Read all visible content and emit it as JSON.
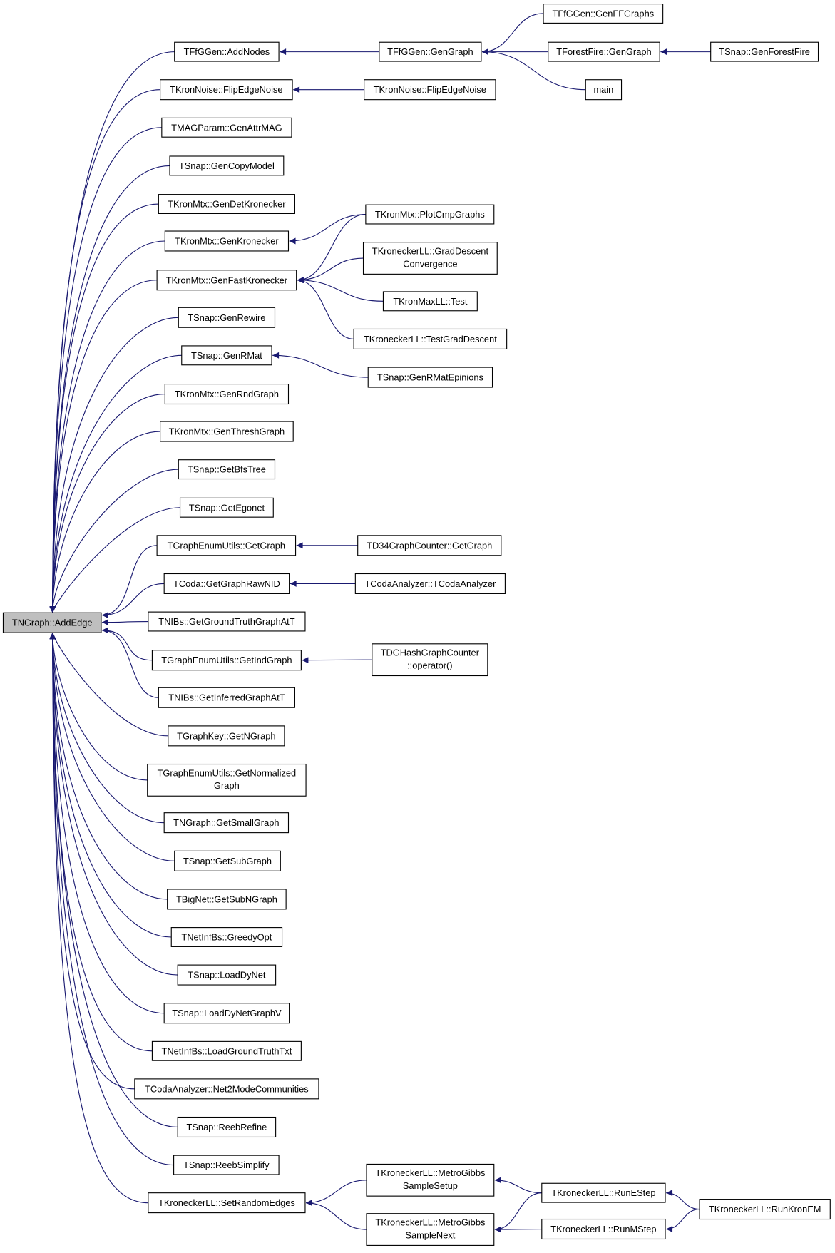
{
  "nodes": [
    {
      "label": "TNGraph::AddEdge"
    },
    {
      "label": "TFfGGen::AddNodes"
    },
    {
      "label": "TKronNoise::FlipEdgeNoise"
    },
    {
      "label": "TMAGParam::GenAttrMAG"
    },
    {
      "label": "TSnap::GenCopyModel"
    },
    {
      "label": "TKronMtx::GenDetKronecker"
    },
    {
      "label": "TKronMtx::GenKronecker"
    },
    {
      "label": "TKronMtx::GenFastKronecker"
    },
    {
      "label": "TSnap::GenRewire"
    },
    {
      "label": "TSnap::GenRMat"
    },
    {
      "label": "TKronMtx::GenRndGraph"
    },
    {
      "label": "TKronMtx::GenThreshGraph"
    },
    {
      "label": "TSnap::GetBfsTree"
    },
    {
      "label": "TSnap::GetEgonet"
    },
    {
      "label": "TGraphEnumUtils::GetGraph"
    },
    {
      "label": "TCoda::GetGraphRawNID"
    },
    {
      "label": "TNIBs::GetGroundTruthGraphAtT"
    },
    {
      "label": "TGraphEnumUtils::GetIndGraph"
    },
    {
      "label": "TNIBs::GetInferredGraphAtT"
    },
    {
      "label": "TGraphKey::GetNGraph"
    },
    {
      "label": [
        "TGraphEnumUtils::GetNormalized",
        "Graph"
      ]
    },
    {
      "label": "TNGraph::GetSmallGraph"
    },
    {
      "label": "TSnap::GetSubGraph"
    },
    {
      "label": "TBigNet::GetSubNGraph"
    },
    {
      "label": "TNetInfBs::GreedyOpt"
    },
    {
      "label": "TSnap::LoadDyNet"
    },
    {
      "label": "TSnap::LoadDyNetGraphV"
    },
    {
      "label": "TNetInfBs::LoadGroundTruthTxt"
    },
    {
      "label": "TCodaAnalyzer::Net2ModeCommunities"
    },
    {
      "label": "TSnap::ReebRefine"
    },
    {
      "label": "TSnap::ReebSimplify"
    },
    {
      "label": "TKroneckerLL::SetRandomEdges"
    },
    {
      "label": "TFfGGen::GenGraph"
    },
    {
      "label": "TKronNoise::FlipEdgeNoise"
    },
    {
      "label": "TKronMtx::PlotCmpGraphs"
    },
    {
      "label": [
        "TKroneckerLL::GradDescent",
        "Convergence"
      ]
    },
    {
      "label": "TKronMaxLL::Test"
    },
    {
      "label": "TKroneckerLL::TestGradDescent"
    },
    {
      "label": "TSnap::GenRMatEpinions"
    },
    {
      "label": "TD34GraphCounter::GetGraph"
    },
    {
      "label": "TCodaAnalyzer::TCodaAnalyzer"
    },
    {
      "label": [
        "TDGHashGraphCounter",
        "::operator()"
      ]
    },
    {
      "label": [
        "TKroneckerLL::MetroGibbs",
        "SampleSetup"
      ]
    },
    {
      "label": [
        "TKroneckerLL::MetroGibbs",
        "SampleNext"
      ]
    },
    {
      "label": "TFfGGen::GenFFGraphs"
    },
    {
      "label": "TForestFire::GenGraph"
    },
    {
      "label": "main"
    },
    {
      "label": "TSnap::GenForestFire"
    },
    {
      "label": "TKroneckerLL::RunEStep"
    },
    {
      "label": "TKroneckerLL::RunMStep"
    },
    {
      "label": "TKroneckerLL::RunKronEM"
    }
  ]
}
